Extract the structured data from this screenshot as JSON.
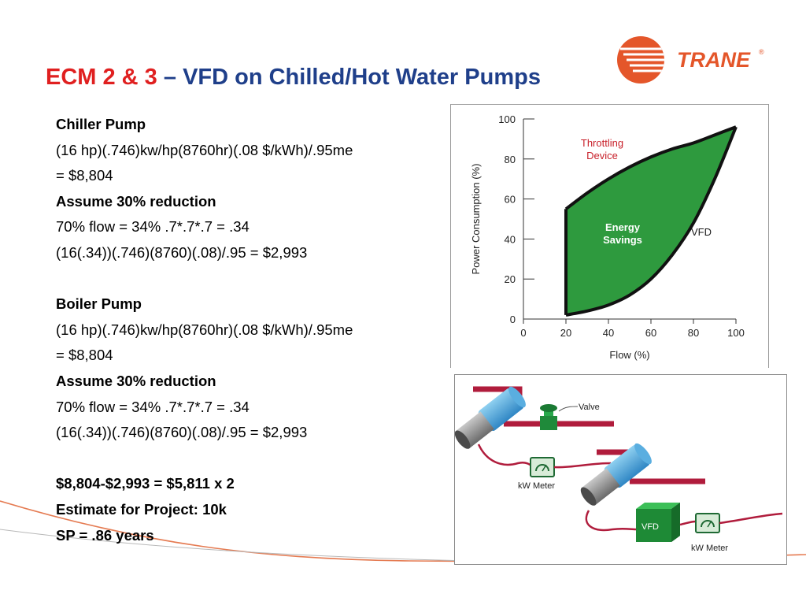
{
  "title": {
    "accent": "ECM 2 & 3",
    "rest": " – VFD on Chilled/Hot Water Pumps"
  },
  "logo": {
    "text": "TRANE",
    "registered": "®"
  },
  "body_lines": [
    {
      "text": "Chiller Pump",
      "bold": true
    },
    {
      "text": "(16 hp)(.746)kw/hp(8760hr)(.08 $/kWh)/.95me",
      "bold": false
    },
    {
      "text": "= $8,804",
      "bold": false
    },
    {
      "text": "Assume 30% reduction",
      "bold": true
    },
    {
      "text": "70% flow = 34%    .7*.7*.7 = .34",
      "bold": false
    },
    {
      "text": "(16(.34))(.746)(8760)(.08)/.95 = $2,993",
      "bold": false
    },
    {
      "text": "",
      "bold": false
    },
    {
      "text": "Boiler Pump",
      "bold": true
    },
    {
      "text": "(16 hp)(.746)kw/hp(8760hr)(.08 $/kWh)/.95me",
      "bold": false
    },
    {
      "text": "= $8,804",
      "bold": false
    },
    {
      "text": "Assume 30% reduction",
      "bold": true
    },
    {
      "text": "70% flow = 34%    .7*.7*.7 = .34",
      "bold": false
    },
    {
      "text": "(16(.34))(.746)(8760)(.08)/.95 = $2,993",
      "bold": false
    },
    {
      "text": "",
      "bold": false
    },
    {
      "text": "$8,804-$2,993 = $5,811 x 2",
      "bold": true
    },
    {
      "text": "Estimate for Project: 10k",
      "bold": true
    },
    {
      "text": "SP = .86 years",
      "bold": true
    }
  ],
  "chart_data": {
    "type": "area",
    "xlabel": "Flow (%)",
    "ylabel": "Power Consumption (%)",
    "xlim": [
      0,
      100
    ],
    "ylim": [
      0,
      100
    ],
    "x_ticks": [
      0,
      20,
      40,
      60,
      80,
      100
    ],
    "y_ticks": [
      0,
      20,
      40,
      60,
      80,
      100
    ],
    "series": [
      {
        "name": "Throttling Device",
        "x": [
          20,
          30,
          40,
          50,
          60,
          70,
          80,
          90,
          100
        ],
        "y": [
          55,
          63,
          70,
          76,
          81,
          85,
          88,
          92,
          96
        ]
      },
      {
        "name": "VFD",
        "x": [
          20,
          30,
          40,
          50,
          60,
          70,
          80,
          90,
          100
        ],
        "y": [
          2,
          4,
          7,
          12,
          20,
          32,
          48,
          70,
          96
        ]
      }
    ],
    "fill_label": [
      "Energy",
      "Savings"
    ],
    "colors": {
      "fill": "#2e9a3e",
      "curve": "#111111",
      "annotation": "#c8202a"
    }
  },
  "diagram": {
    "valve_label": "Valve",
    "kw_meter_label_1": "kW Meter",
    "vfd_label": "VFD",
    "kw_meter_label_2": "kW Meter"
  }
}
